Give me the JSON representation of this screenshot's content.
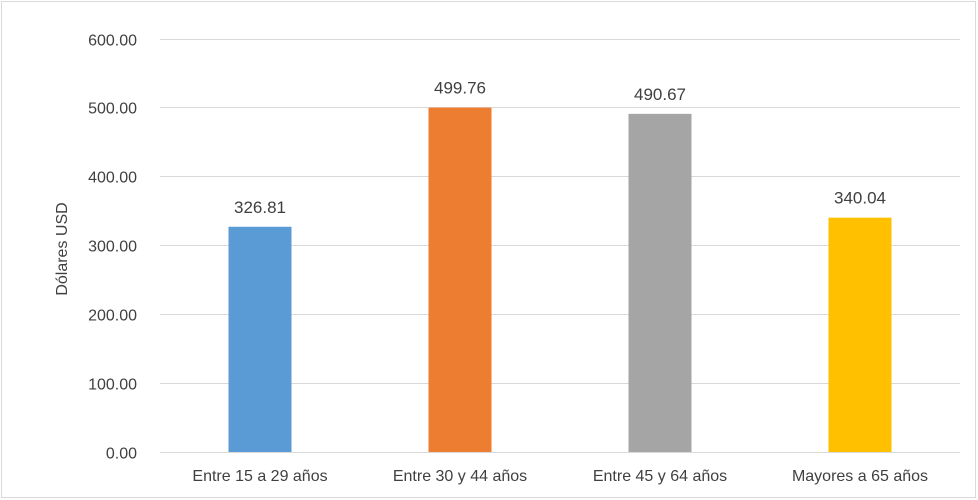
{
  "chart_data": {
    "type": "bar",
    "title": "",
    "xlabel": "",
    "ylabel": "Dólares USD",
    "categories": [
      "Entre 15 a 29 años",
      "Entre 30 y 44 años",
      "Entre 45 y 64 años",
      "Mayores a 65 años"
    ],
    "values": [
      326.81,
      499.76,
      490.67,
      340.04
    ],
    "value_labels": [
      "326.81",
      "499.76",
      "490.67",
      "340.04"
    ],
    "colors": [
      "#5b9bd5",
      "#ed7d31",
      "#a5a5a5",
      "#ffc000"
    ],
    "ylim": [
      0,
      600
    ],
    "yticks": [
      0,
      100,
      200,
      300,
      400,
      500,
      600
    ],
    "ytick_labels": [
      "0.00",
      "100.00",
      "200.00",
      "300.00",
      "400.00",
      "500.00",
      "600.00"
    ],
    "grid": true,
    "grid_color": "#d9d9d9",
    "legend": "none"
  }
}
